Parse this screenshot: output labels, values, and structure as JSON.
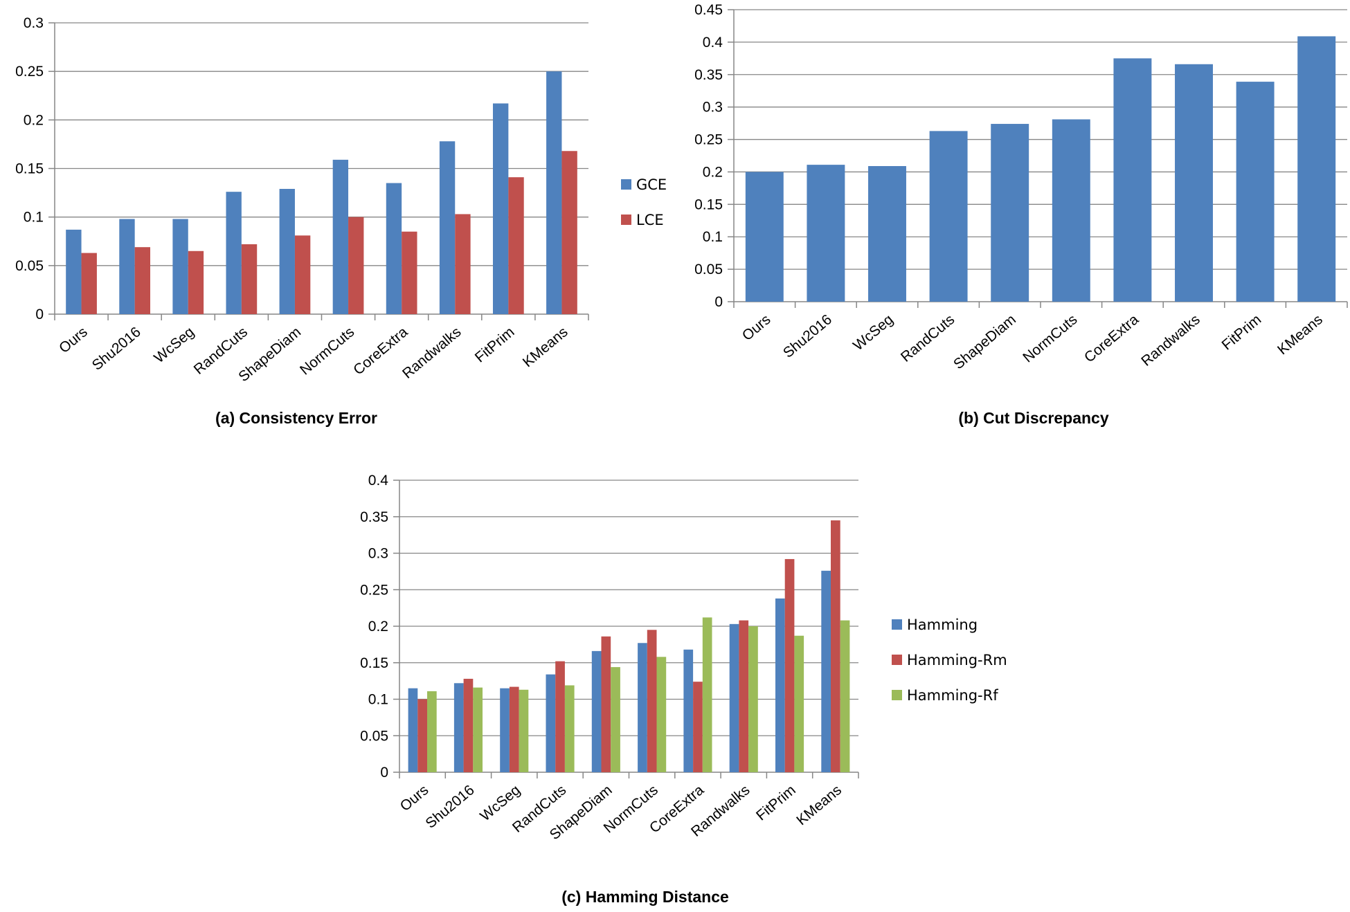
{
  "colors": {
    "blue": "#4F81BD",
    "red": "#C0504D",
    "green": "#9BBB59"
  },
  "chart_data": [
    {
      "type": "bar",
      "title": "(a) Consistency Error",
      "xlabel": "",
      "ylabel": "",
      "categories": [
        "Ours",
        "Shu2016",
        "WcSeg",
        "RandCuts",
        "ShapeDiam",
        "NormCuts",
        "CoreExtra",
        "Randwalks",
        "FitPrim",
        "KMeans"
      ],
      "ylim": [
        0,
        0.3
      ],
      "yticks": [
        "0",
        "0.05",
        "0.1",
        "0.15",
        "0.2",
        "0.25",
        "0.3"
      ],
      "grid": true,
      "legend_position": "right",
      "series": [
        {
          "name": "GCE",
          "color": "#4F81BD",
          "values": [
            0.087,
            0.098,
            0.098,
            0.126,
            0.129,
            0.159,
            0.135,
            0.178,
            0.217,
            0.25
          ]
        },
        {
          "name": "LCE",
          "color": "#C0504D",
          "values": [
            0.063,
            0.069,
            0.065,
            0.072,
            0.081,
            0.1,
            0.085,
            0.103,
            0.141,
            0.168
          ]
        }
      ]
    },
    {
      "type": "bar",
      "title": "(b) Cut Discrepancy",
      "xlabel": "",
      "ylabel": "",
      "categories": [
        "Ours",
        "Shu2016",
        "WcSeg",
        "RandCuts",
        "ShapeDiam",
        "NormCuts",
        "CoreExtra",
        "Randwalks",
        "FitPrim",
        "KMeans"
      ],
      "ylim": [
        0,
        0.45
      ],
      "yticks": [
        "0",
        "0.05",
        "0.1",
        "0.15",
        "0.2",
        "0.25",
        "0.3",
        "0.35",
        "0.4",
        "0.45"
      ],
      "grid": true,
      "legend_position": "none",
      "series": [
        {
          "color": "#4F81BD",
          "values": [
            0.2,
            0.211,
            0.209,
            0.263,
            0.274,
            0.281,
            0.375,
            0.366,
            0.339,
            0.409
          ]
        }
      ]
    },
    {
      "type": "bar",
      "title": "(c) Hamming Distance",
      "xlabel": "",
      "ylabel": "",
      "categories": [
        "Ours",
        "Shu2016",
        "WcSeg",
        "RandCuts",
        "ShapeDiam",
        "NormCuts",
        "CoreExtra",
        "Randwalks",
        "FitPrim",
        "KMeans"
      ],
      "ylim": [
        0,
        0.4
      ],
      "yticks": [
        "0",
        "0.05",
        "0.1",
        "0.15",
        "0.2",
        "0.25",
        "0.3",
        "0.35",
        "0.4"
      ],
      "grid": true,
      "legend_position": "right",
      "series": [
        {
          "name": "Hamming",
          "color": "#4F81BD",
          "values": [
            0.115,
            0.122,
            0.115,
            0.134,
            0.166,
            0.177,
            0.168,
            0.203,
            0.238,
            0.276
          ]
        },
        {
          "name": "Hamming-Rm",
          "color": "#C0504D",
          "values": [
            0.1,
            0.128,
            0.117,
            0.152,
            0.186,
            0.195,
            0.124,
            0.208,
            0.292,
            0.345
          ]
        },
        {
          "name": "Hamming-Rf",
          "color": "#9BBB59",
          "values": [
            0.111,
            0.116,
            0.113,
            0.119,
            0.144,
            0.158,
            0.212,
            0.2,
            0.187,
            0.208
          ]
        }
      ]
    }
  ]
}
